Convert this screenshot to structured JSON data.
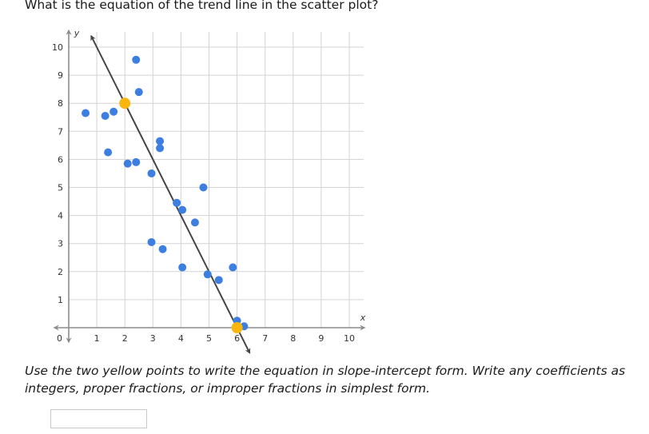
{
  "question": {
    "text": "What is the equation of the trend line in the scatter plot?"
  },
  "instructions": {
    "text": "Use the two yellow points to write the equation in slope-intercept form. Write any coefficients as integers, proper fractions, or improper fractions in simplest form."
  },
  "answer": {
    "value": ""
  },
  "colors": {
    "grid": "#d3d3d3",
    "axis": "#8c8c8c",
    "points": "#3d7fe0",
    "highlight": "#f8b60f",
    "trend_line": "#444444"
  },
  "chart_data": {
    "type": "scatter",
    "xlabel": "x",
    "ylabel": "y",
    "xlim": [
      0,
      10
    ],
    "ylim": [
      0,
      10
    ],
    "x_ticks": [
      "1",
      "2",
      "3",
      "4",
      "5",
      "6",
      "7",
      "8",
      "9",
      "10"
    ],
    "y_ticks": [
      "1",
      "2",
      "3",
      "4",
      "5",
      "6",
      "7",
      "8",
      "9",
      "10"
    ],
    "origin_label": "0",
    "grid": true,
    "series": [
      {
        "role": "data-points",
        "points": [
          {
            "x": 0.6,
            "y": 7.65
          },
          {
            "x": 1.3,
            "y": 7.55
          },
          {
            "x": 1.4,
            "y": 6.25
          },
          {
            "x": 1.6,
            "y": 7.7
          },
          {
            "x": 2.1,
            "y": 5.85
          },
          {
            "x": 2.4,
            "y": 5.9
          },
          {
            "x": 2.4,
            "y": 9.55
          },
          {
            "x": 2.5,
            "y": 8.4
          },
          {
            "x": 2.95,
            "y": 5.5
          },
          {
            "x": 2.95,
            "y": 3.05
          },
          {
            "x": 3.25,
            "y": 6.65
          },
          {
            "x": 3.25,
            "y": 6.4
          },
          {
            "x": 3.35,
            "y": 2.8
          },
          {
            "x": 3.85,
            "y": 4.45
          },
          {
            "x": 4.05,
            "y": 4.2
          },
          {
            "x": 4.05,
            "y": 2.15
          },
          {
            "x": 4.5,
            "y": 3.75
          },
          {
            "x": 4.8,
            "y": 5.0
          },
          {
            "x": 4.95,
            "y": 1.9
          },
          {
            "x": 5.35,
            "y": 1.7
          },
          {
            "x": 5.85,
            "y": 2.15
          },
          {
            "x": 6.0,
            "y": 0.25
          },
          {
            "x": 6.25,
            "y": 0.05
          }
        ]
      },
      {
        "role": "highlighted-points",
        "points": [
          {
            "x": 2,
            "y": 8
          },
          {
            "x": 6,
            "y": 0
          }
        ]
      }
    ],
    "trend_line": {
      "slope": -2,
      "intercept": 12,
      "x_range": [
        0.8,
        6.45
      ]
    }
  }
}
